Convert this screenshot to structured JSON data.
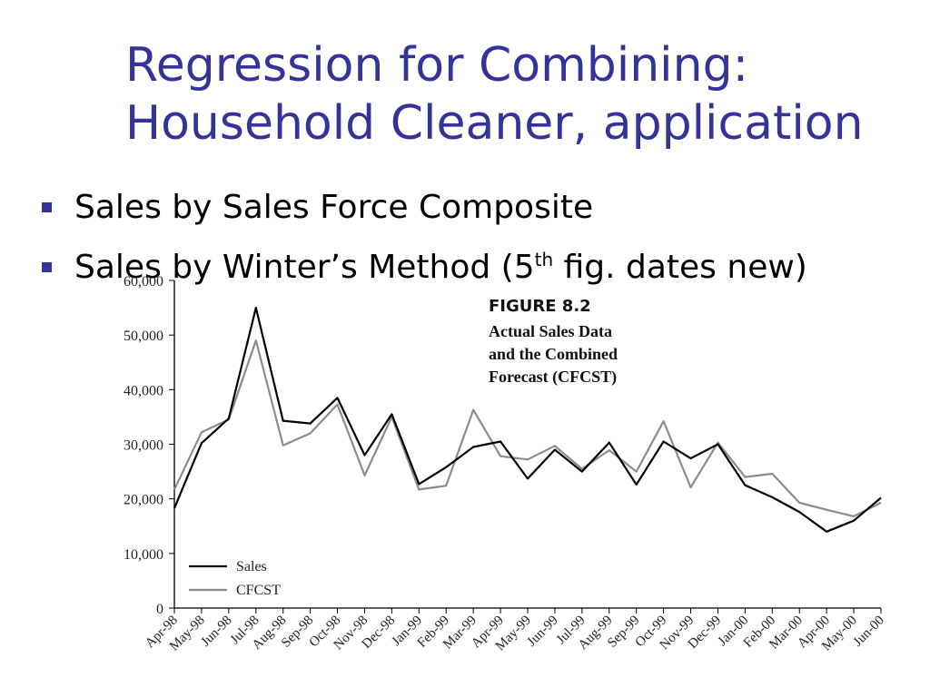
{
  "slide": {
    "title_line1": "Regression for Combining:",
    "title_line2": "Household Cleaner, application",
    "bullets": [
      {
        "text": "Sales by Sales Force Composite"
      },
      {
        "text_before": "Sales by Winter’s Method (5",
        "sup": "th",
        "text_after": " fig. dates new)"
      }
    ],
    "accent_color": "#333399",
    "bullet_icon": "square-bullet"
  },
  "chart_data": {
    "type": "line",
    "figure_label": "FIGURE 8.2",
    "caption_lines": [
      "Actual Sales Data",
      "and the Combined",
      "Forecast (CFCST)"
    ],
    "categories": [
      "Apr-98",
      "May-98",
      "Jun-98",
      "Jul-98",
      "Aug-98",
      "Sep-98",
      "Oct-98",
      "Nov-98",
      "Dec-98",
      "Jan-99",
      "Feb-99",
      "Mar-99",
      "Apr-99",
      "May-99",
      "Jun-99",
      "Jul-99",
      "Aug-99",
      "Sep-99",
      "Oct-99",
      "Nov-99",
      "Dec-99",
      "Jan-00",
      "Feb-00",
      "Mar-00",
      "Apr-00",
      "May-00",
      "Jun-00"
    ],
    "series": [
      {
        "name": "Sales",
        "color": "#000000",
        "values": [
          18300,
          30200,
          34700,
          55000,
          34300,
          33800,
          38500,
          28000,
          35500,
          22700,
          25800,
          29500,
          30500,
          23700,
          29000,
          25000,
          30300,
          22600,
          30500,
          27400,
          30000,
          22500,
          20300,
          17600,
          14000,
          16000,
          20200
        ]
      },
      {
        "name": "CFCST",
        "color": "#8c8c8c",
        "values": [
          21700,
          32200,
          34500,
          49000,
          29800,
          32000,
          37300,
          24300,
          35000,
          21700,
          22400,
          36300,
          27800,
          27200,
          29700,
          25500,
          28900,
          25000,
          34200,
          22100,
          30300,
          24000,
          24600,
          19300,
          18000,
          16800,
          19300
        ]
      }
    ],
    "yticks": [
      "0",
      "10,000",
      "20,000",
      "30,000",
      "40,000",
      "50,000",
      "60,000"
    ],
    "ylim": [
      0,
      60000
    ],
    "legend_position": "bottom-left",
    "grid": false
  }
}
